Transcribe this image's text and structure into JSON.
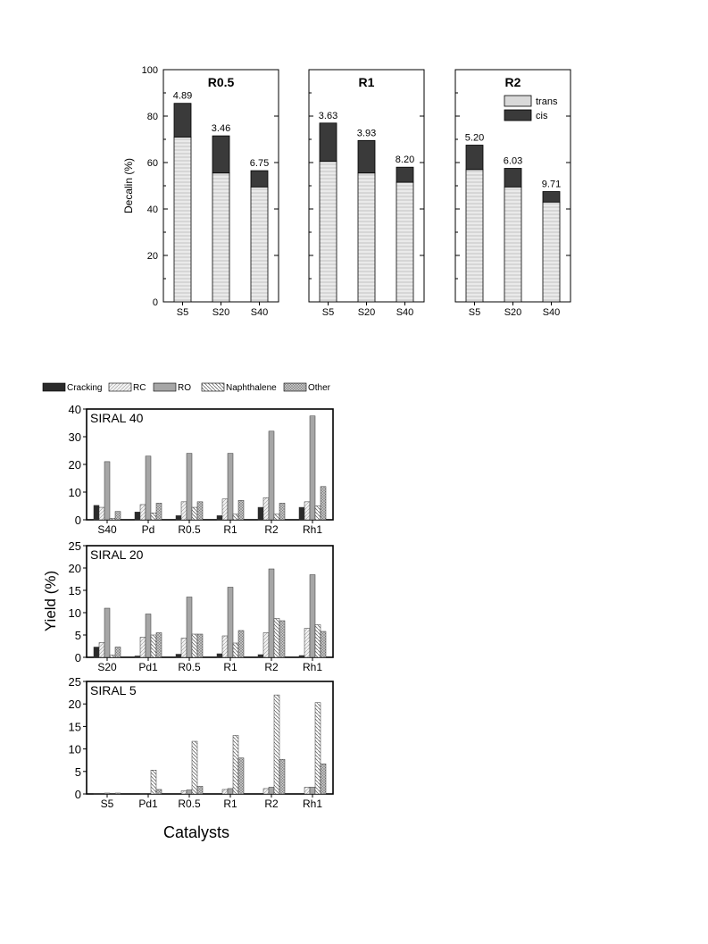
{
  "chart_data": [
    {
      "type": "bar",
      "stacked": true,
      "ylabel": "Decalin (%)",
      "ylim": [
        0,
        100
      ],
      "yticks": [
        0,
        20,
        40,
        60,
        80,
        100
      ],
      "legend": {
        "placement": "top-right",
        "panel": "R2",
        "entries": [
          "trans",
          "cis"
        ]
      },
      "colors": {
        "trans": "#d9d9d9",
        "cis": "#3a3a3a"
      },
      "panels": [
        {
          "title": "R0.5",
          "categories": [
            "S5",
            "S20",
            "S40"
          ],
          "series": [
            {
              "name": "trans",
              "values": [
                71,
                55.5,
                49.5
              ]
            },
            {
              "name": "cis",
              "values": [
                14.5,
                16,
                7
              ]
            }
          ],
          "labels": [
            "4.89",
            "3.46",
            "6.75"
          ]
        },
        {
          "title": "R1",
          "categories": [
            "S5",
            "S20",
            "S40"
          ],
          "series": [
            {
              "name": "trans",
              "values": [
                60.5,
                55.5,
                51.5
              ]
            },
            {
              "name": "cis",
              "values": [
                16.5,
                14,
                6.5
              ]
            }
          ],
          "labels": [
            "3.63",
            "3.93",
            "8.20"
          ]
        },
        {
          "title": "R2",
          "categories": [
            "S5",
            "S20",
            "S40"
          ],
          "series": [
            {
              "name": "trans",
              "values": [
                57,
                49.5,
                43
              ]
            },
            {
              "name": "cis",
              "values": [
                10.5,
                8,
                4.5
              ]
            }
          ],
          "labels": [
            "5.20",
            "6.03",
            "9.71"
          ]
        }
      ]
    },
    {
      "type": "bar",
      "ylabel": "Yield (%)",
      "xlabel": "Catalysts",
      "legend": {
        "placement": "top",
        "entries": [
          "Cracking",
          "RC",
          "RO",
          "Naphthalene",
          "Other"
        ]
      },
      "colors": {
        "Cracking": "#2b2b2b",
        "RC": "#eeeeee",
        "RO": "#a6a6a6",
        "Naphthalene": "#ffffff",
        "Other": "#b5b5b5"
      },
      "panels": [
        {
          "title": "SIRAL 40",
          "ylim": [
            0,
            40
          ],
          "yticks": [
            0,
            10,
            20,
            30,
            40
          ],
          "categories": [
            "S40",
            "Pd",
            "R0.5",
            "R1",
            "R2",
            "Rh1"
          ],
          "series": [
            {
              "name": "Cracking",
              "values": [
                5.2,
                2.8,
                1.5,
                1.5,
                4.5,
                4.5
              ]
            },
            {
              "name": "RC",
              "values": [
                4.5,
                5.5,
                6.5,
                7.5,
                8,
                6.5
              ]
            },
            {
              "name": "RO",
              "values": [
                21,
                23,
                24,
                24,
                32,
                37.5
              ]
            },
            {
              "name": "Naphthalene",
              "values": [
                0.5,
                2.5,
                4.5,
                2,
                2,
                5
              ]
            },
            {
              "name": "Other",
              "values": [
                3,
                6,
                6.5,
                7,
                6,
                12
              ]
            }
          ]
        },
        {
          "title": "SIRAL 20",
          "ylim": [
            0,
            25
          ],
          "yticks": [
            0,
            5,
            10,
            15,
            20,
            25
          ],
          "categories": [
            "S20",
            "Pd1",
            "R0.5",
            "R1",
            "R2",
            "Rh1"
          ],
          "series": [
            {
              "name": "Cracking",
              "values": [
                2.3,
                0.3,
                0.7,
                0.8,
                0.6,
                0.4
              ]
            },
            {
              "name": "RC",
              "values": [
                3.3,
                4.5,
                4.3,
                4.8,
                5.5,
                6.5
              ]
            },
            {
              "name": "RO",
              "values": [
                11,
                9.7,
                13.5,
                15.7,
                19.8,
                18.5
              ]
            },
            {
              "name": "Naphthalene",
              "values": [
                0.5,
                5,
                5.2,
                3.2,
                8.7,
                7.3
              ]
            },
            {
              "name": "Other",
              "values": [
                2.3,
                5.5,
                5.2,
                6,
                8.2,
                5.8
              ]
            }
          ]
        },
        {
          "title": "SIRAL 5",
          "ylim": [
            0,
            25
          ],
          "yticks": [
            0,
            5,
            10,
            15,
            20,
            25
          ],
          "categories": [
            "S5",
            "Pd1",
            "R0.5",
            "R1",
            "R2",
            "Rh1"
          ],
          "series": [
            {
              "name": "Cracking",
              "values": [
                0.1,
                0,
                0,
                0,
                0,
                0
              ]
            },
            {
              "name": "RC",
              "values": [
                0.1,
                0.1,
                0.7,
                1,
                1.2,
                1.5
              ]
            },
            {
              "name": "RO",
              "values": [
                0.2,
                0.1,
                0.9,
                1.2,
                1.5,
                1.5
              ]
            },
            {
              "name": "Naphthalene",
              "values": [
                0.1,
                5.3,
                11.7,
                13,
                22,
                20.3
              ]
            },
            {
              "name": "Other",
              "values": [
                0.2,
                1,
                1.7,
                8,
                7.7,
                6.7
              ]
            }
          ]
        }
      ]
    }
  ]
}
